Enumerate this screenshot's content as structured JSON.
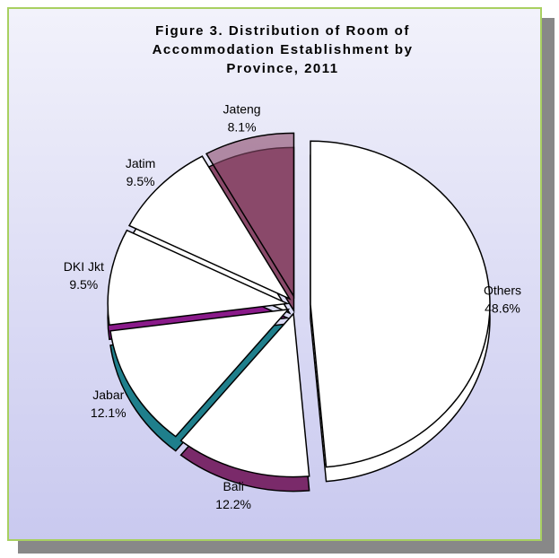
{
  "chart_data": {
    "type": "pie",
    "title": "Figure 3. Distribution of Room of Accommodation Establishment by Province, 2011",
    "categories": [
      "Others",
      "Bali",
      "Jabar",
      "DKI Jkt",
      "Jatim",
      "Jateng"
    ],
    "values": [
      48.6,
      12.2,
      12.1,
      9.5,
      9.5,
      8.1
    ],
    "value_labels": [
      "48.6%",
      "12.2%",
      "12.1%",
      "9.5%",
      "9.5%",
      "8.1%"
    ],
    "colors": [
      "#ffffff",
      "#7a2a6a",
      "#1f7f8c",
      "#8a1a8a",
      "#ffffff",
      "#8a4a6a"
    ]
  }
}
